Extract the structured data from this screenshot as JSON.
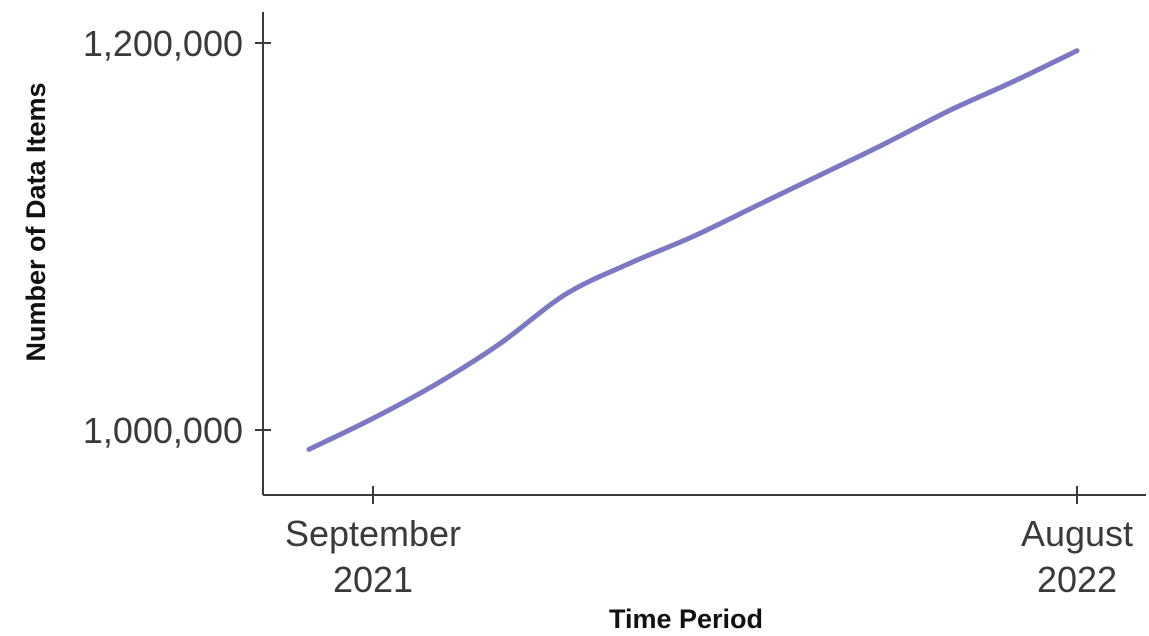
{
  "chart_data": {
    "type": "line",
    "xlabel": "Time Period",
    "ylabel": "Number of Data Items",
    "x_ticks": [
      {
        "value": "2021-09",
        "lines": [
          "September",
          "2021"
        ]
      },
      {
        "value": "2022-08",
        "lines": [
          "August",
          "2022"
        ]
      }
    ],
    "y_ticks": [
      {
        "value": 1000000,
        "label": "1,000,000"
      },
      {
        "value": 1200000,
        "label": "1,200,000"
      }
    ],
    "ylim": [
      965000,
      1220000
    ],
    "xlim": [
      "2021-08",
      "2022-09"
    ],
    "grid": false,
    "series": [
      {
        "color": "#7b78c4",
        "points": [
          {
            "x": "2021-08",
            "y": 990000
          },
          {
            "x": "2021-09",
            "y": 1006000
          },
          {
            "x": "2021-10",
            "y": 1024000
          },
          {
            "x": "2021-11",
            "y": 1045000
          },
          {
            "x": "2021-12",
            "y": 1070000
          },
          {
            "x": "2022-01",
            "y": 1086000
          },
          {
            "x": "2022-02",
            "y": 1100000
          },
          {
            "x": "2022-03",
            "y": 1116000
          },
          {
            "x": "2022-04",
            "y": 1132000
          },
          {
            "x": "2022-05",
            "y": 1148000
          },
          {
            "x": "2022-06",
            "y": 1165000
          },
          {
            "x": "2022-07",
            "y": 1180000
          },
          {
            "x": "2022-08",
            "y": 1196000
          }
        ]
      }
    ]
  }
}
